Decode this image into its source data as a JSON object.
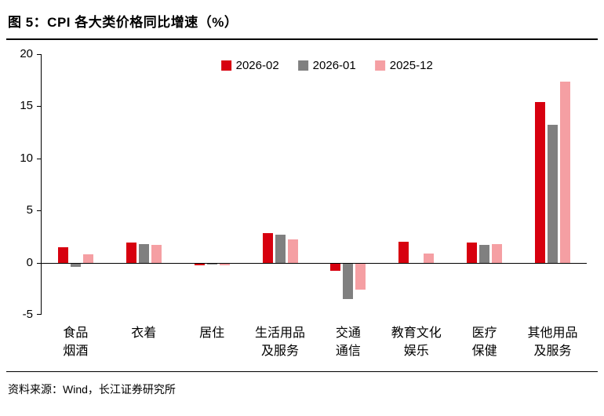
{
  "title": "图 5：CPI 各大类价格同比增速（%）",
  "source": "资料来源：Wind，长江证券研究所",
  "chart_data": {
    "type": "bar",
    "title": "图 5：CPI 各大类价格同比增速（%）",
    "categories": [
      "食品烟酒",
      "衣着",
      "居住",
      "生活用品及服务",
      "交通通信",
      "教育文化娱乐",
      "医疗保健",
      "其他用品及服务"
    ],
    "category_lines": [
      [
        "食品",
        "烟酒"
      ],
      [
        "衣着"
      ],
      [
        "居住"
      ],
      [
        "生活用品",
        "及服务"
      ],
      [
        "交通",
        "通信"
      ],
      [
        "教育文化",
        "娱乐"
      ],
      [
        "医疗",
        "保健"
      ],
      [
        "其他用品",
        "及服务"
      ]
    ],
    "series": [
      {
        "name": "2026-02",
        "color": "#d7000f",
        "values": [
          1.5,
          1.9,
          -0.2,
          2.8,
          -0.7,
          2.0,
          1.9,
          15.4
        ]
      },
      {
        "name": "2026-01",
        "color": "#808080",
        "values": [
          -0.3,
          1.8,
          -0.1,
          2.7,
          -3.4,
          0.0,
          1.7,
          13.2
        ]
      },
      {
        "name": "2025-12",
        "color": "#f59fa3",
        "values": [
          0.8,
          1.7,
          -0.2,
          2.2,
          -2.5,
          0.9,
          1.8,
          17.4
        ]
      }
    ],
    "ylim": [
      -5,
      20
    ],
    "yticks": [
      20,
      15,
      10,
      5,
      0,
      -5
    ],
    "ylabel": "",
    "xlabel": "",
    "grid": false,
    "legend_position": "top-center"
  }
}
